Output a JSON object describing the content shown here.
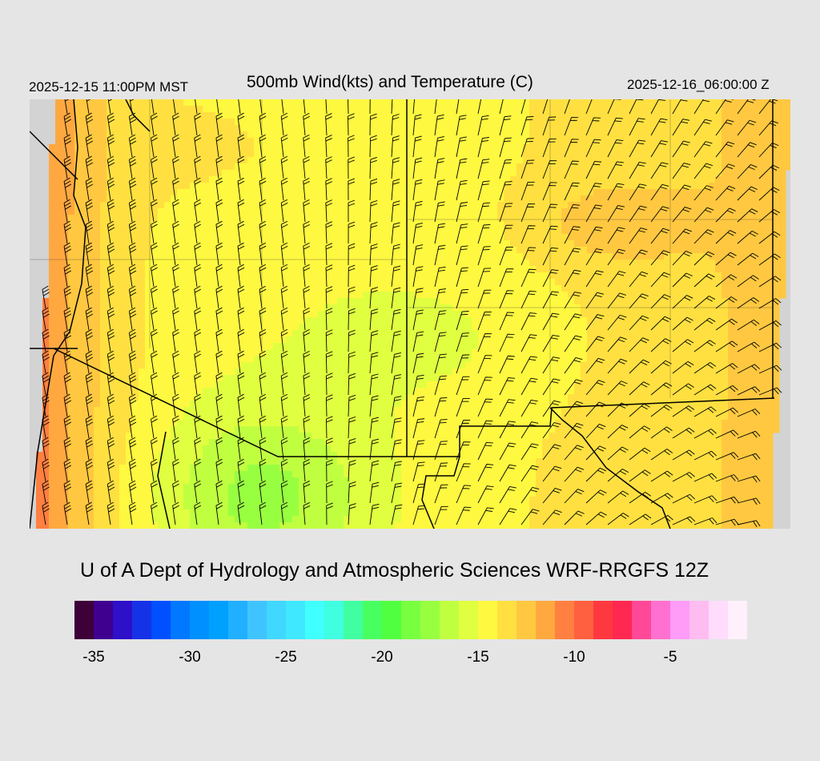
{
  "header": {
    "valid_local": "2025-12-15 11:00PM MST",
    "title": "500mb Wind(kts) and Temperature (C)",
    "valid_utc": "2025-12-16_06:00:00 Z"
  },
  "credit": "U of A Dept of Hydrology and Atmospheric Sciences WRF-RRGFS 12Z",
  "colorbar": {
    "range": [
      -36,
      -1
    ],
    "colors": [
      "#3d0039",
      "#3f0090",
      "#2e10c8",
      "#1632e6",
      "#0050ff",
      "#0078ff",
      "#0090ff",
      "#00a0ff",
      "#20b0ff",
      "#40c4ff",
      "#40d8ff",
      "#40e8ff",
      "#40ffff",
      "#40ffe0",
      "#40ffa0",
      "#48ff60",
      "#50ff40",
      "#78ff40",
      "#98ff40",
      "#c0ff40",
      "#e0ff40",
      "#fff840",
      "#ffe040",
      "#ffc840",
      "#ffa840",
      "#ff8040",
      "#ff6040",
      "#ff3840",
      "#ff2850",
      "#ff4898",
      "#ff70d0",
      "#ff9cf8",
      "#ffbcf0",
      "#ffdcfc",
      "#fff0fc"
    ],
    "ticks": [
      "-35",
      "-30",
      "-25",
      "-20",
      "-15",
      "-10",
      "-5"
    ],
    "tick_values": [
      -35,
      -30,
      -25,
      -20,
      -15,
      -10,
      -5
    ]
  },
  "map": {
    "no_data_color": "#d3d3d3",
    "border_color": "#000000",
    "contour_color": "#808080",
    "field": "500mb temperature (C), approx -10 west coast, -15 interior, -18 southern Arizona"
  }
}
